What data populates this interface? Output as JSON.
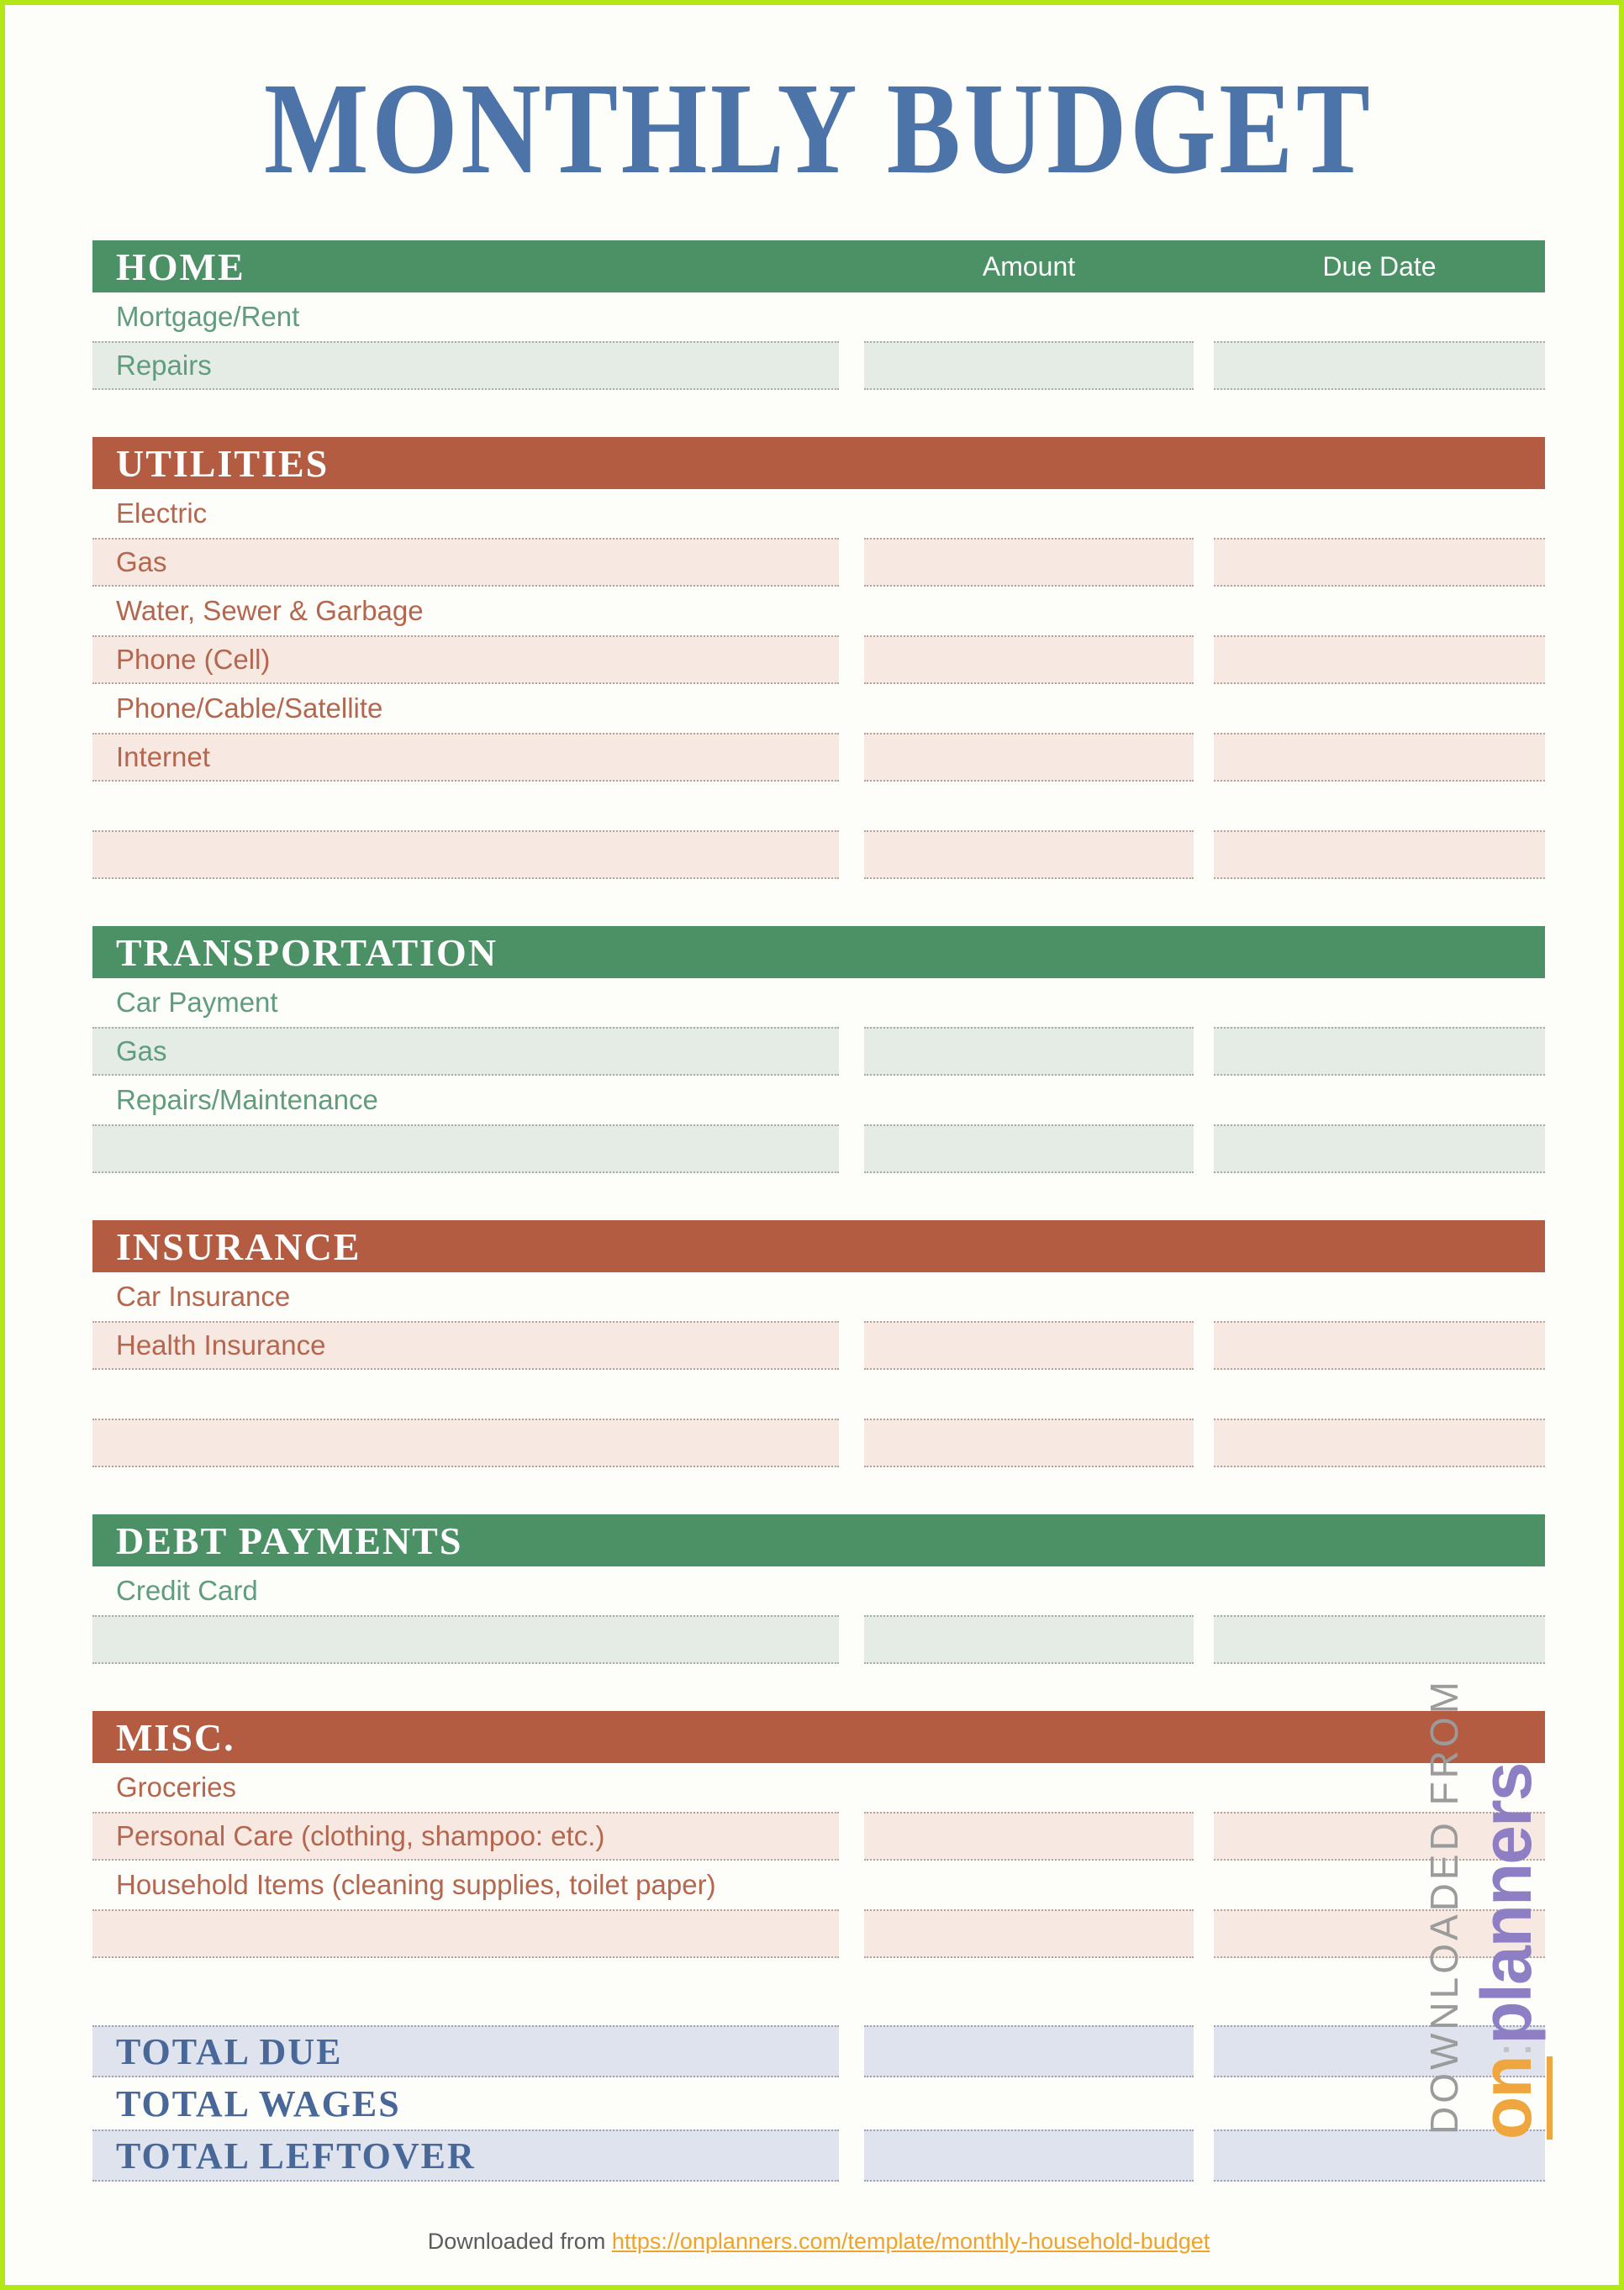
{
  "page": {
    "title": "MONTHLY BUDGET"
  },
  "columns": {
    "amount_label": "Amount",
    "due_date_label": "Due Date"
  },
  "sections": [
    {
      "id": "home",
      "title": "HOME",
      "theme": "green",
      "show_column_headers": true,
      "rows": [
        {
          "label": "Mortgage/Rent",
          "shaded": false
        },
        {
          "label": "Repairs",
          "shaded": true
        }
      ]
    },
    {
      "id": "utilities",
      "title": "UTILITIES",
      "theme": "brick",
      "show_column_headers": false,
      "rows": [
        {
          "label": "Electric",
          "shaded": false
        },
        {
          "label": "Gas",
          "shaded": true
        },
        {
          "label": "Water, Sewer & Garbage",
          "shaded": false
        },
        {
          "label": "Phone (Cell)",
          "shaded": true
        },
        {
          "label": "Phone/Cable/Satellite",
          "shaded": false
        },
        {
          "label": "Internet",
          "shaded": true
        },
        {
          "label": "",
          "shaded": false
        },
        {
          "label": "",
          "shaded": true
        }
      ]
    },
    {
      "id": "transportation",
      "title": "TRANSPORTATION",
      "theme": "green",
      "show_column_headers": false,
      "rows": [
        {
          "label": "Car Payment",
          "shaded": false
        },
        {
          "label": "Gas",
          "shaded": true
        },
        {
          "label": "Repairs/Maintenance",
          "shaded": false
        },
        {
          "label": "",
          "shaded": true
        }
      ]
    },
    {
      "id": "insurance",
      "title": "INSURANCE",
      "theme": "brick",
      "show_column_headers": false,
      "rows": [
        {
          "label": "Car Insurance",
          "shaded": false
        },
        {
          "label": "Health Insurance",
          "shaded": true
        },
        {
          "label": "",
          "shaded": false
        },
        {
          "label": "",
          "shaded": true
        }
      ]
    },
    {
      "id": "debt-payments",
      "title": "DEBT PAYMENTS",
      "theme": "green",
      "show_column_headers": false,
      "rows": [
        {
          "label": "Credit Card",
          "shaded": false
        },
        {
          "label": "",
          "shaded": true
        }
      ]
    },
    {
      "id": "misc",
      "title": "MISC.",
      "theme": "brick",
      "show_column_headers": false,
      "rows": [
        {
          "label": "Groceries",
          "shaded": false
        },
        {
          "label": "Personal Care (clothing, shampoo: etc.)",
          "shaded": true
        },
        {
          "label": "Household Items (cleaning supplies, toilet paper)",
          "shaded": false
        },
        {
          "label": "",
          "shaded": true
        }
      ]
    }
  ],
  "totals": [
    {
      "label": "TOTAL DUE",
      "shaded": true
    },
    {
      "label": "TOTAL WAGES",
      "shaded": false
    },
    {
      "label": "TOTAL LEFTOVER",
      "shaded": true
    }
  ],
  "footer": {
    "prefix": "Downloaded from",
    "link": "https://onplanners.com/template/monthly-household-budget"
  },
  "watermark": {
    "line1": "DOWNLOADED FROM",
    "logo_on": "on",
    "logo_colon": ":",
    "logo_rest": "planners"
  },
  "colors": {
    "page_border": "#b3e814",
    "title_blue": "#4c74a8",
    "green_bar": "#4c9166",
    "green_row_fill": "#e4ece5",
    "green_label_text": "#619c7c",
    "brick_bar": "#b45c41",
    "brick_row_fill": "#f7e9e2",
    "brick_label_text": "#b5664e",
    "totals_row_fill": "#dee3ee",
    "totals_text": "#48689a",
    "footer_link_orange": "#efa32b",
    "watermark_gray": "#9b9b9b",
    "watermark_orange": "#f0a63e",
    "watermark_purple": "#8e7ec4"
  }
}
